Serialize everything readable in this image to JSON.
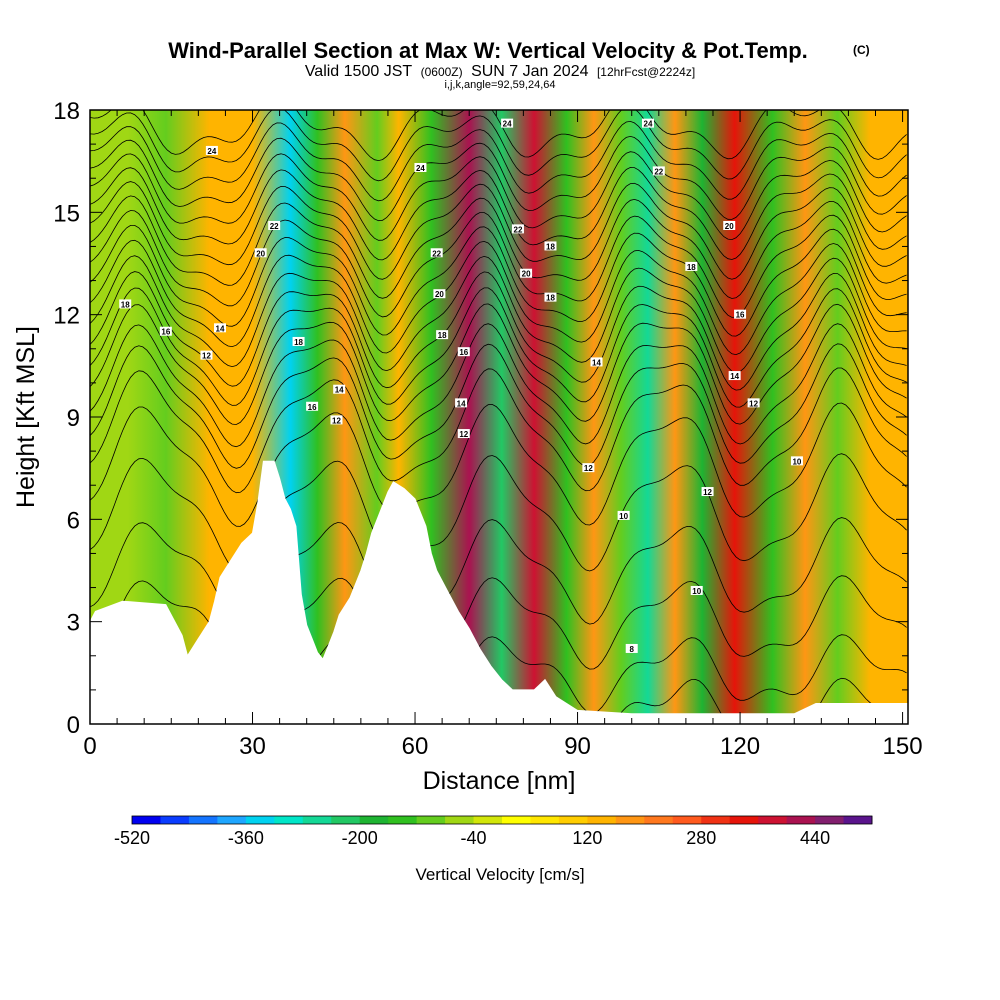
{
  "title": {
    "main": "Wind-Parallel Section at Max W: Vertical Velocity & Pot.Temp.",
    "copyright": "(C)",
    "valid_prefix": "Valid 1500 JST",
    "utc": "(0600Z)",
    "date": "SUN 7 Jan 2024",
    "forecast": "[12hrFcst@2224z]",
    "indices": "i,j,k,angle=92,59,24,64"
  },
  "chart_data": {
    "type": "heatmap",
    "xlabel": "Distance [nm]",
    "ylabel": "Height [Kft MSL]",
    "xlim": [
      0,
      151
    ],
    "ylim": [
      0,
      18
    ],
    "x_ticks": [
      "0",
      "30",
      "60",
      "90",
      "120",
      "150"
    ],
    "y_ticks": [
      "0",
      "3",
      "6",
      "9",
      "12",
      "15",
      "18"
    ],
    "x_tick_values": [
      0,
      30,
      60,
      90,
      120,
      150
    ],
    "y_tick_values": [
      0,
      3,
      6,
      9,
      12,
      15,
      18
    ],
    "colorbar": {
      "title": "Vertical Velocity [cm/s]",
      "tick_labels": [
        "-520",
        "-360",
        "-200",
        "-40",
        "120",
        "280",
        "440"
      ],
      "tick_values": [
        -520,
        -360,
        -200,
        -40,
        120,
        280,
        440
      ],
      "min": -520,
      "max": 520,
      "colors": [
        "#0000f0",
        "#0a3cff",
        "#1474ff",
        "#1ea6ff",
        "#00d2f0",
        "#00e6c8",
        "#14d896",
        "#22c864",
        "#1eb432",
        "#30c020",
        "#64cd1e",
        "#a0d714",
        "#d2e60a",
        "#ffff00",
        "#ffe600",
        "#ffcd00",
        "#ffb400",
        "#ff9614",
        "#ff781e",
        "#ff5a1e",
        "#f03214",
        "#e6140a",
        "#cd1232",
        "#aa1250",
        "#821e6e",
        "#5a148c"
      ]
    },
    "velocity_bands": [
      {
        "x": 7,
        "w": -60
      },
      {
        "x": 14,
        "w": -90
      },
      {
        "x": 22,
        "w": 150
      },
      {
        "x": 30,
        "w": 120
      },
      {
        "x": 37,
        "w": -360
      },
      {
        "x": 42,
        "w": -150
      },
      {
        "x": 47,
        "w": 190
      },
      {
        "x": 53,
        "w": -110
      },
      {
        "x": 57,
        "w": 150
      },
      {
        "x": 63,
        "w": -140
      },
      {
        "x": 70,
        "w": 400
      },
      {
        "x": 76,
        "w": -230
      },
      {
        "x": 82,
        "w": 380
      },
      {
        "x": 88,
        "w": -140
      },
      {
        "x": 93,
        "w": 160
      },
      {
        "x": 98,
        "w": -120
      },
      {
        "x": 103,
        "w": -250
      },
      {
        "x": 108,
        "w": 160
      },
      {
        "x": 113,
        "w": -170
      },
      {
        "x": 119,
        "w": 330
      },
      {
        "x": 126,
        "w": -150
      },
      {
        "x": 132,
        "w": 170
      },
      {
        "x": 138,
        "w": -120
      },
      {
        "x": 144,
        "w": 140
      }
    ],
    "terrain": {
      "x": [
        0,
        1,
        6,
        14,
        16,
        17,
        18,
        20,
        22,
        23,
        24,
        26,
        28,
        30,
        31,
        32,
        34,
        35,
        36,
        37,
        38,
        39,
        40,
        41,
        42,
        43,
        44,
        45,
        46,
        48,
        50,
        51,
        52,
        54,
        55,
        56,
        58,
        60,
        62,
        63,
        64,
        66,
        68,
        70,
        72,
        74,
        76,
        78,
        80,
        82,
        84,
        86,
        88,
        90,
        100,
        110,
        120,
        130,
        134,
        140,
        151
      ],
      "y": [
        3.0,
        3.3,
        3.6,
        3.5,
        2.9,
        2.6,
        2.0,
        2.5,
        3.0,
        3.6,
        4.3,
        4.8,
        5.3,
        5.6,
        6.5,
        7.7,
        7.7,
        7.2,
        6.6,
        6.3,
        5.8,
        3.8,
        2.9,
        2.5,
        2.1,
        1.9,
        2.3,
        2.7,
        3.2,
        3.7,
        4.5,
        5.0,
        5.6,
        6.4,
        6.8,
        7.1,
        6.9,
        6.6,
        5.8,
        5.0,
        4.5,
        3.9,
        3.3,
        2.8,
        2.2,
        1.7,
        1.3,
        1.0,
        1.0,
        1.0,
        1.3,
        0.8,
        0.6,
        0.4,
        0.3,
        0.3,
        0.3,
        0.3,
        0.6,
        0.6,
        0.6
      ]
    },
    "theta_contour_labels": [
      "8",
      "10",
      "12",
      "14",
      "16",
      "18",
      "20",
      "22",
      "24"
    ],
    "theta_labels": [
      {
        "text": "24",
        "x": 22.5,
        "y": 16.8
      },
      {
        "text": "24",
        "x": 61,
        "y": 16.3
      },
      {
        "text": "24",
        "x": 77,
        "y": 17.6
      },
      {
        "text": "24",
        "x": 103,
        "y": 17.6
      },
      {
        "text": "22",
        "x": 34,
        "y": 14.6
      },
      {
        "text": "22",
        "x": 64,
        "y": 13.8
      },
      {
        "text": "22",
        "x": 79,
        "y": 14.5
      },
      {
        "text": "22",
        "x": 105,
        "y": 16.2
      },
      {
        "text": "20",
        "x": 31.5,
        "y": 13.8
      },
      {
        "text": "20",
        "x": 64.5,
        "y": 12.6
      },
      {
        "text": "20",
        "x": 80.5,
        "y": 13.2
      },
      {
        "text": "20",
        "x": 118,
        "y": 14.6
      },
      {
        "text": "18",
        "x": 6.5,
        "y": 12.3
      },
      {
        "text": "18",
        "x": 38.5,
        "y": 11.2
      },
      {
        "text": "18",
        "x": 65,
        "y": 11.4
      },
      {
        "text": "18",
        "x": 85,
        "y": 14.0
      },
      {
        "text": "18",
        "x": 85,
        "y": 12.5
      },
      {
        "text": "18",
        "x": 111,
        "y": 13.4
      },
      {
        "text": "16",
        "x": 14,
        "y": 11.5
      },
      {
        "text": "16",
        "x": 41,
        "y": 9.3
      },
      {
        "text": "16",
        "x": 69,
        "y": 10.9
      },
      {
        "text": "16",
        "x": 120,
        "y": 12.0
      },
      {
        "text": "14",
        "x": 24,
        "y": 11.6
      },
      {
        "text": "14",
        "x": 46,
        "y": 9.8
      },
      {
        "text": "14",
        "x": 68.5,
        "y": 9.4
      },
      {
        "text": "14",
        "x": 93.5,
        "y": 10.6
      },
      {
        "text": "14",
        "x": 119,
        "y": 10.2
      },
      {
        "text": "12",
        "x": 21.5,
        "y": 10.8
      },
      {
        "text": "12",
        "x": 45.5,
        "y": 8.9
      },
      {
        "text": "12",
        "x": 69,
        "y": 8.5
      },
      {
        "text": "12",
        "x": 92,
        "y": 7.5
      },
      {
        "text": "12",
        "x": 114,
        "y": 6.8
      },
      {
        "text": "12",
        "x": 122.5,
        "y": 9.4
      },
      {
        "text": "10",
        "x": 98.5,
        "y": 6.1
      },
      {
        "text": "10",
        "x": 112,
        "y": 3.9
      },
      {
        "text": "10",
        "x": 130.5,
        "y": 7.7
      },
      {
        "text": "8",
        "x": 100,
        "y": 2.2
      }
    ]
  }
}
